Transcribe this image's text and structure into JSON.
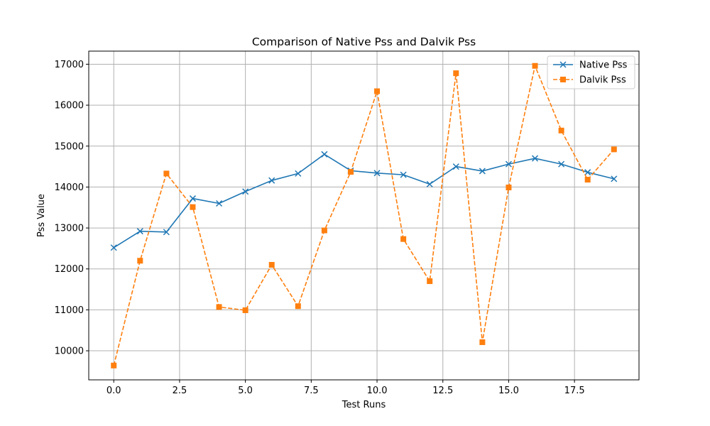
{
  "chart_data": {
    "type": "line",
    "title": "Comparison of Native Pss and Dalvik Pss",
    "xlabel": "Test Runs",
    "ylabel": "Pss Value",
    "x": [
      0,
      1,
      2,
      3,
      4,
      5,
      6,
      7,
      8,
      9,
      10,
      11,
      12,
      13,
      14,
      15,
      16,
      17,
      18,
      19
    ],
    "xlim": [
      -0.95,
      19.95
    ],
    "ylim": [
      9290,
      17320
    ],
    "xticks": [
      0,
      2.5,
      5,
      7.5,
      10,
      12.5,
      15,
      17.5
    ],
    "xtick_labels": [
      "0.0",
      "2.5",
      "5.0",
      "7.5",
      "10.0",
      "12.5",
      "15.0",
      "17.5"
    ],
    "yticks": [
      10000,
      11000,
      12000,
      13000,
      14000,
      15000,
      16000,
      17000
    ],
    "ytick_labels": [
      "10000",
      "11000",
      "12000",
      "13000",
      "14000",
      "15000",
      "16000",
      "17000"
    ],
    "grid": true,
    "legend_position": "top-right",
    "series": [
      {
        "name": "Native Pss",
        "color": "#1f77b4",
        "marker": "x",
        "linestyle": "solid",
        "values": [
          12520,
          12920,
          12900,
          13720,
          13600,
          13890,
          14160,
          14330,
          14800,
          14400,
          14340,
          14300,
          14070,
          14500,
          14390,
          14560,
          14700,
          14560,
          14360,
          14200
        ]
      },
      {
        "name": "Dalvik Pss",
        "color": "#ff7f0e",
        "marker": "s",
        "linestyle": "dashed",
        "values": [
          9640,
          12200,
          14330,
          13510,
          11070,
          10990,
          12100,
          11090,
          12940,
          14370,
          16340,
          12730,
          11700,
          16780,
          10210,
          13990,
          16960,
          15380,
          14180,
          14920
        ]
      }
    ]
  }
}
